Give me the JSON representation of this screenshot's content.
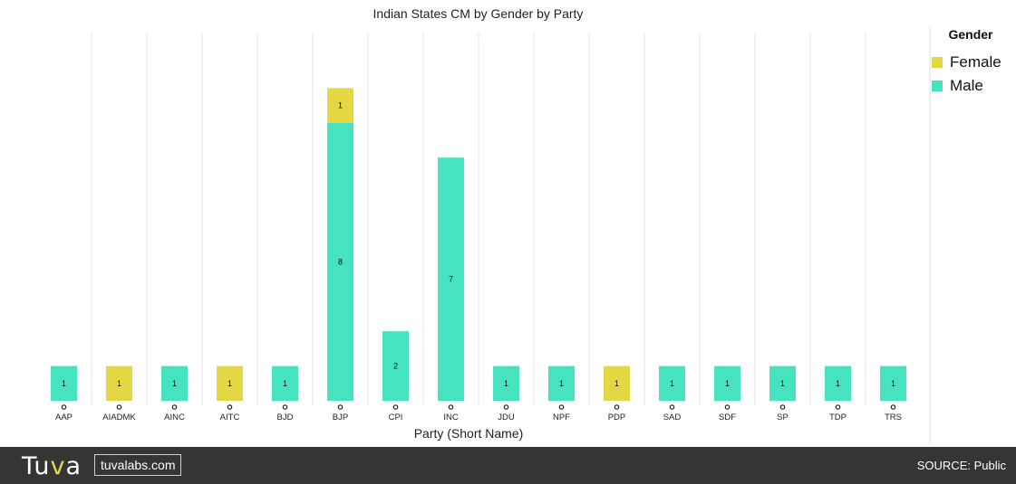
{
  "chart_data": {
    "type": "bar",
    "stacked": true,
    "title": "Indian States CM by Gender by Party",
    "xlabel": "Party (Short Name)",
    "ylabel": "",
    "categories": [
      "AAP",
      "AIADMK",
      "AINC",
      "AITC",
      "BJD",
      "BJP",
      "CPI",
      "INC",
      "JDU",
      "NPF",
      "PDP",
      "SAD",
      "SDF",
      "SP",
      "TDP",
      "TRS"
    ],
    "series": [
      {
        "name": "Male",
        "color": "#45e3bf",
        "values": [
          1,
          0,
          1,
          0,
          1,
          8,
          2,
          7,
          1,
          1,
          0,
          1,
          1,
          1,
          1,
          1
        ]
      },
      {
        "name": "Female",
        "color": "#e3d843",
        "values": [
          0,
          1,
          0,
          1,
          0,
          1,
          0,
          0,
          0,
          0,
          1,
          0,
          0,
          0,
          0,
          0
        ]
      }
    ],
    "ylim": [
      0,
      10.5
    ],
    "grid": true,
    "legend": {
      "title": "Gender",
      "placement": "right",
      "entries": [
        "Female",
        "Male"
      ]
    }
  },
  "footer": {
    "logo_prefix": "Tu",
    "logo_accent": "v",
    "logo_suffix": "a",
    "site": "tuvalabs.com",
    "source": "SOURCE: Public"
  }
}
